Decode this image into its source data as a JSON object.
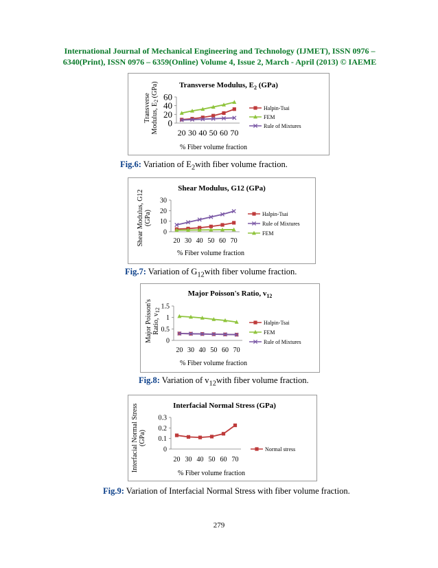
{
  "header": {
    "line1": "International Journal of Mechanical Engineering and Technology (IJMET), ISSN 0976 –",
    "line2": "6340(Print), ISSN 0976 – 6359(Online) Volume 4, Issue 2, March - April (2013) © IAEME"
  },
  "captions": [
    {
      "label": "Fig.6:",
      "pre": " Variation of E",
      "sub": "2",
      "post": "with fiber volume fraction."
    },
    {
      "label": "Fig.7:",
      "pre": " Variation of G",
      "sub": "12",
      "post": "with fiber volume fraction."
    },
    {
      "label": "Fig.8:",
      "pre": " Variation of v",
      "sub": "12",
      "post": "with fiber volume fraction."
    },
    {
      "label": "Fig.9:",
      "pre": " Variation of Interfacial Normal Stress with fiber volume fraction.",
      "sub": "",
      "post": ""
    }
  ],
  "page_number": "279",
  "colors": {
    "halpin": "#be3b3b",
    "fem": "#8fc43c",
    "rom": "#7b59a6",
    "header": "#0b7a2a",
    "fig_label": "#0b3f8a"
  },
  "chart_data": [
    {
      "type": "line",
      "title": "Transverse Modulus, E2 (GPa)",
      "title_main": "Transverse Modulus, E",
      "title_sub": "2",
      "title_post": " (GPa)",
      "ylabel_line1": "Transverse",
      "ylabel_line2_main": "Modulus, E",
      "ylabel_line2_sub": "2",
      "ylabel_line2_post": " (GPa)",
      "xlabel": "% Fiber volume fraction",
      "x": [
        20,
        30,
        40,
        50,
        60,
        70
      ],
      "ylim": [
        0,
        60
      ],
      "yticks": [
        0,
        20,
        40,
        60
      ],
      "legend_position": "right",
      "series": [
        {
          "name": "Halpin-Tsai",
          "marker": "square",
          "color": "#be3b3b",
          "values": [
            8,
            10,
            13,
            17,
            23,
            32
          ]
        },
        {
          "name": "FEM",
          "marker": "triangle",
          "color": "#8fc43c",
          "values": [
            23,
            28,
            32,
            37,
            42,
            48
          ]
        },
        {
          "name": "Rule of Mixtures",
          "marker": "x",
          "color": "#7b59a6",
          "values": [
            7,
            8,
            9,
            10,
            11,
            12
          ]
        }
      ]
    },
    {
      "type": "line",
      "title": "Shear Modulus, G12 (GPa)",
      "ylabel_line1": "Shear Modulus, G12",
      "ylabel_line2": "(GPa)",
      "xlabel": "% Fiber volume fraction",
      "x": [
        20,
        30,
        40,
        50,
        60,
        70
      ],
      "ylim": [
        0,
        30
      ],
      "yticks": [
        0,
        10,
        20,
        30
      ],
      "legend_position": "right",
      "series": [
        {
          "name": "Halpin-Tsai",
          "marker": "square",
          "color": "#be3b3b",
          "values": [
            2.5,
            3,
            3.8,
            5,
            6.5,
            8.5
          ]
        },
        {
          "name": "Rule of Mixtures",
          "marker": "x",
          "color": "#7b59a6",
          "values": [
            6.5,
            9,
            11.5,
            14,
            16.5,
            19.5
          ]
        },
        {
          "name": "FEM",
          "marker": "triangle",
          "color": "#8fc43c",
          "values": [
            1.5,
            1.6,
            1.7,
            1.8,
            1.9,
            2
          ]
        }
      ]
    },
    {
      "type": "line",
      "title": "Major Poisson's Ratio, v12",
      "title_main": "Major Poisson's Ratio, v",
      "title_sub": "12",
      "title_post": "",
      "ylabel_line1": "Major Poisson's",
      "ylabel_line2_main": "Ratio, v",
      "ylabel_line2_sub": "12",
      "ylabel_line2_post": "",
      "xlabel": "% Fiber volume fraction",
      "x": [
        20,
        30,
        40,
        50,
        60,
        70
      ],
      "ylim": [
        0,
        1.5
      ],
      "yticks": [
        0,
        0.5,
        1,
        1.5
      ],
      "legend_position": "right",
      "series": [
        {
          "name": "Halpin-Tsai",
          "marker": "square",
          "color": "#be3b3b",
          "values": [
            0.3,
            0.29,
            0.28,
            0.27,
            0.26,
            0.25
          ]
        },
        {
          "name": "FEM",
          "marker": "triangle",
          "color": "#8fc43c",
          "values": [
            1.05,
            1.02,
            0.98,
            0.92,
            0.87,
            0.8
          ]
        },
        {
          "name": "Rule of Mixtures",
          "marker": "x",
          "color": "#7b59a6",
          "values": [
            0.3,
            0.29,
            0.28,
            0.27,
            0.26,
            0.25
          ]
        }
      ]
    },
    {
      "type": "line",
      "title": "Interfacial Normal Stress (GPa)",
      "ylabel_line1": "Interfacial Normal Stress",
      "ylabel_line2": "(GPa)",
      "xlabel": "% Fiber volume fraction",
      "x": [
        20,
        30,
        40,
        50,
        60,
        70
      ],
      "ylim": [
        0,
        0.3
      ],
      "yticks": [
        0,
        0.1,
        0.2,
        0.3
      ],
      "legend_position": "right",
      "series": [
        {
          "name": "Normal stress",
          "marker": "square",
          "color": "#be3b3b",
          "values": [
            0.13,
            0.115,
            0.11,
            0.118,
            0.145,
            0.225
          ]
        }
      ]
    }
  ]
}
